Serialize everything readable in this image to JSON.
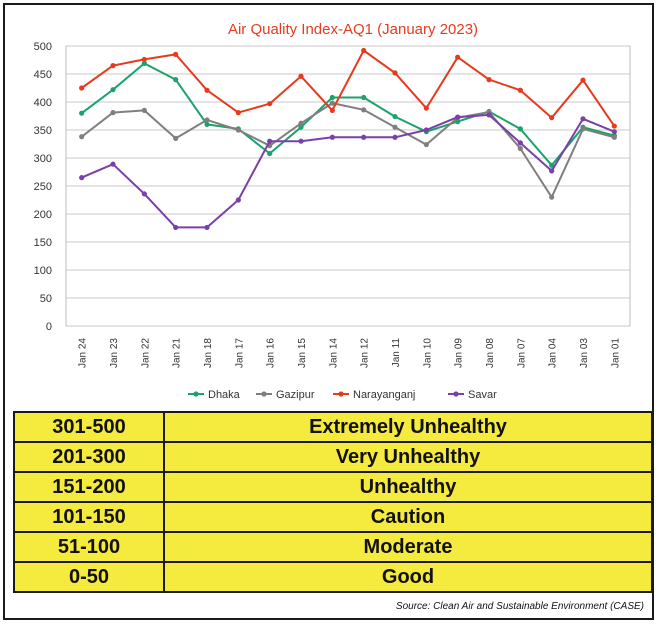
{
  "chart_data": {
    "type": "line",
    "title": "Air Quality Index-AQ1 (January 2023)",
    "categories": [
      "Jan 24",
      "Jan 23",
      "Jan 22",
      "Jan 21",
      "Jan 18",
      "Jan 17",
      "Jan 16",
      "Jan 15",
      "Jan 14",
      "Jan 12",
      "Jan 11",
      "Jan 10",
      "Jan 09",
      "Jan 08",
      "Jan 07",
      "Jan 04",
      "Jan 03",
      "Jan 01"
    ],
    "ylim": [
      0,
      500
    ],
    "yticks": [
      0,
      50,
      100,
      150,
      200,
      250,
      300,
      350,
      400,
      450,
      500
    ],
    "grid": true,
    "legend_position": "bottom",
    "series": [
      {
        "name": "Dhaka",
        "color": "#1aa36b",
        "values": [
          380,
          422,
          469,
          440,
          360,
          352,
          308,
          355,
          408,
          408,
          374,
          347,
          365,
          383,
          352,
          287,
          355,
          340
        ]
      },
      {
        "name": "Gazipur",
        "color": "#7f7f7f",
        "values": [
          338,
          381,
          385,
          335,
          368,
          350,
          322,
          362,
          398,
          386,
          355,
          324,
          372,
          382,
          317,
          230,
          352,
          337
        ]
      },
      {
        "name": "Narayanganj",
        "color": "#e63b1f",
        "values": [
          425,
          465,
          476,
          485,
          421,
          381,
          397,
          446,
          385,
          492,
          452,
          389,
          480,
          440,
          421,
          372,
          439,
          357
        ]
      },
      {
        "name": "Savar",
        "color": "#7a3fa8",
        "values": [
          265,
          289,
          236,
          176,
          176,
          225,
          330,
          330,
          337,
          337,
          337,
          350,
          373,
          377,
          327,
          277,
          370,
          347
        ]
      }
    ]
  },
  "table": {
    "background": "#f5ea3e",
    "rows": [
      {
        "range": "301-500",
        "category": "Extremely Unhealthy"
      },
      {
        "range": "201-300",
        "category": "Very Unhealthy"
      },
      {
        "range": "151-200",
        "category": "Unhealthy"
      },
      {
        "range": "101-150",
        "category": "Caution"
      },
      {
        "range": "51-100",
        "category": "Moderate"
      },
      {
        "range": "0-50",
        "category": "Good"
      }
    ]
  },
  "source": "Source: Clean Air and Sustainable Environment (CASE)"
}
